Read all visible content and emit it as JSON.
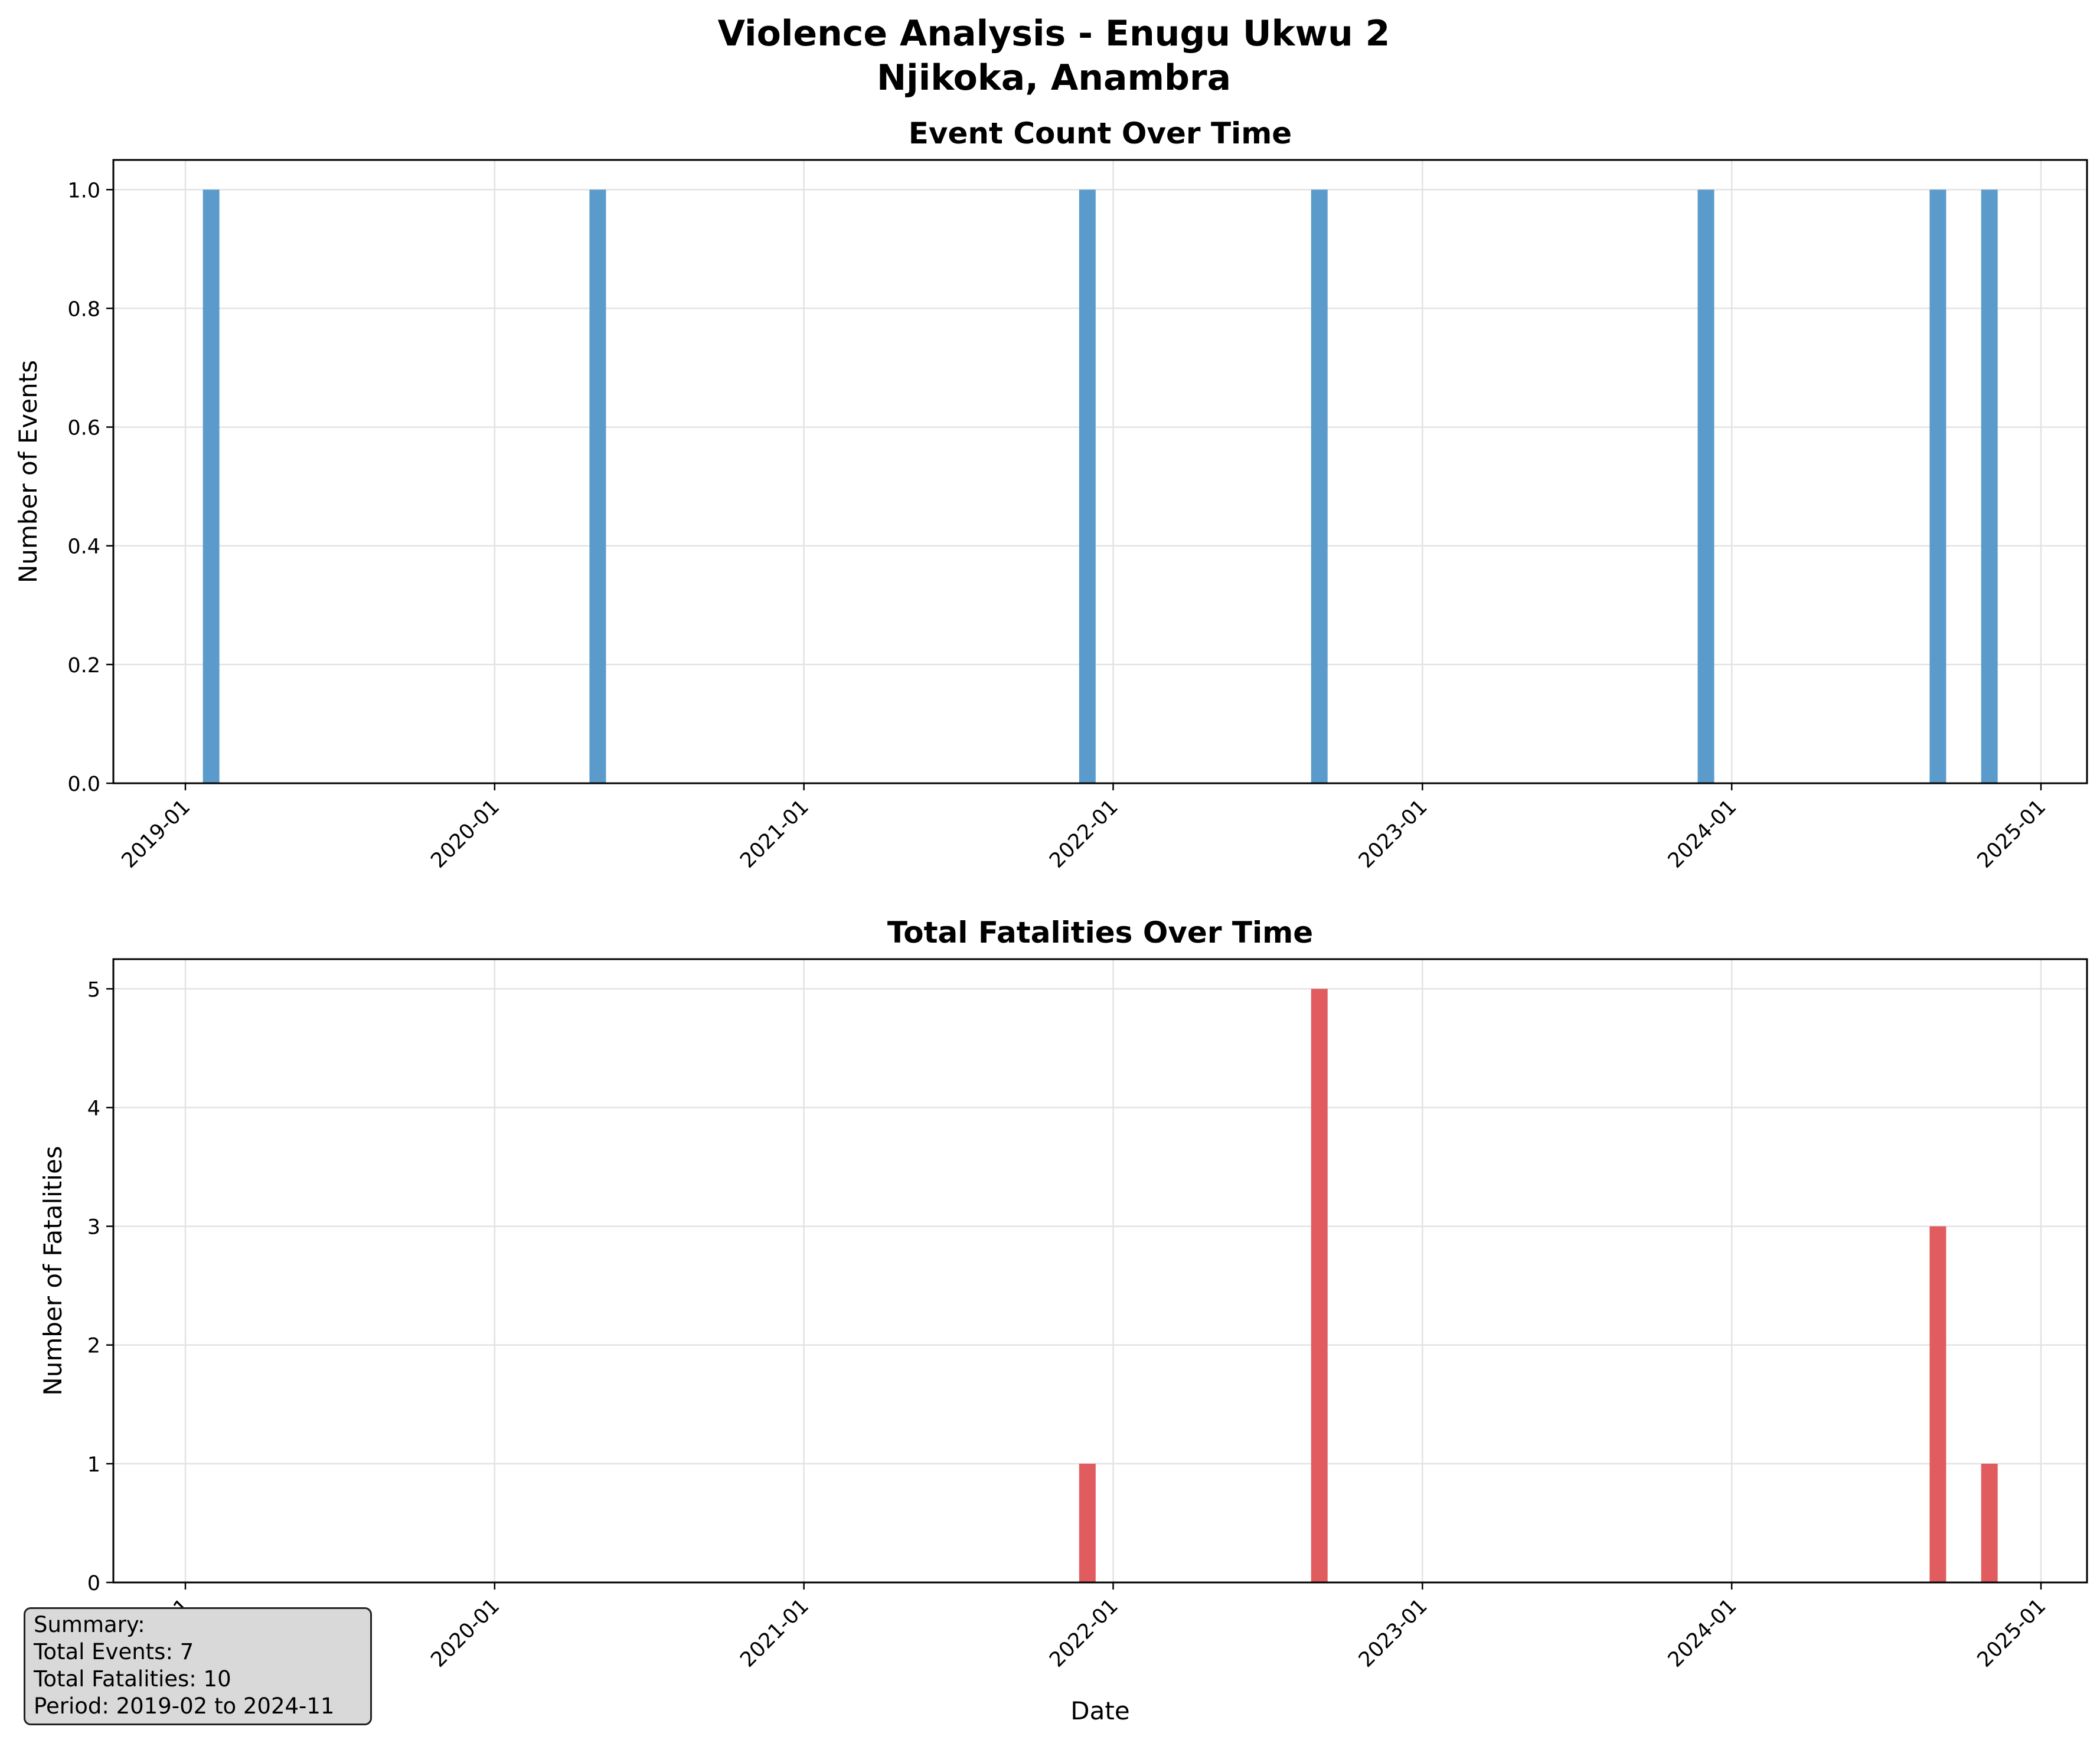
{
  "figure": {
    "title_line1": "Violence Analysis - Enugu Ukwu 2",
    "title_line2": "Njikoka, Anambra"
  },
  "chart_data": [
    {
      "type": "bar",
      "title": "Event Count Over Time",
      "xlabel": "",
      "ylabel": "Number of Events",
      "x_tick_labels": [
        "2019-01",
        "2020-01",
        "2021-01",
        "2022-01",
        "2023-01",
        "2024-01",
        "2025-01"
      ],
      "y_tick_labels": [
        "0.0",
        "0.2",
        "0.4",
        "0.6",
        "0.8",
        "1.0"
      ],
      "ylim": [
        0,
        1.05
      ],
      "grid": true,
      "color": "#5b9bcb",
      "x": [
        "2019-02",
        "2020-05",
        "2021-12",
        "2022-09",
        "2023-12",
        "2024-09",
        "2024-11"
      ],
      "values": [
        1,
        1,
        1,
        1,
        1,
        1,
        1
      ]
    },
    {
      "type": "bar",
      "title": "Total Fatalities Over Time",
      "xlabel": "Date",
      "ylabel": "Number of Fatalities",
      "x_tick_labels": [
        "2019-01",
        "2020-01",
        "2021-01",
        "2022-01",
        "2023-01",
        "2024-01",
        "2025-01"
      ],
      "y_tick_labels": [
        "0",
        "1",
        "2",
        "3",
        "4",
        "5"
      ],
      "ylim": [
        0,
        5.25
      ],
      "grid": true,
      "color": "#e05c5e",
      "x": [
        "2019-02",
        "2020-05",
        "2021-12",
        "2022-09",
        "2023-12",
        "2024-09",
        "2024-11"
      ],
      "values": [
        0,
        0,
        1,
        5,
        0,
        3,
        1
      ]
    }
  ],
  "summary": {
    "heading": "Summary:",
    "total_events": "Total Events: 7",
    "total_fatalities": "Total Fatalities: 10",
    "period": "Period: 2019-02 to 2024-11"
  }
}
